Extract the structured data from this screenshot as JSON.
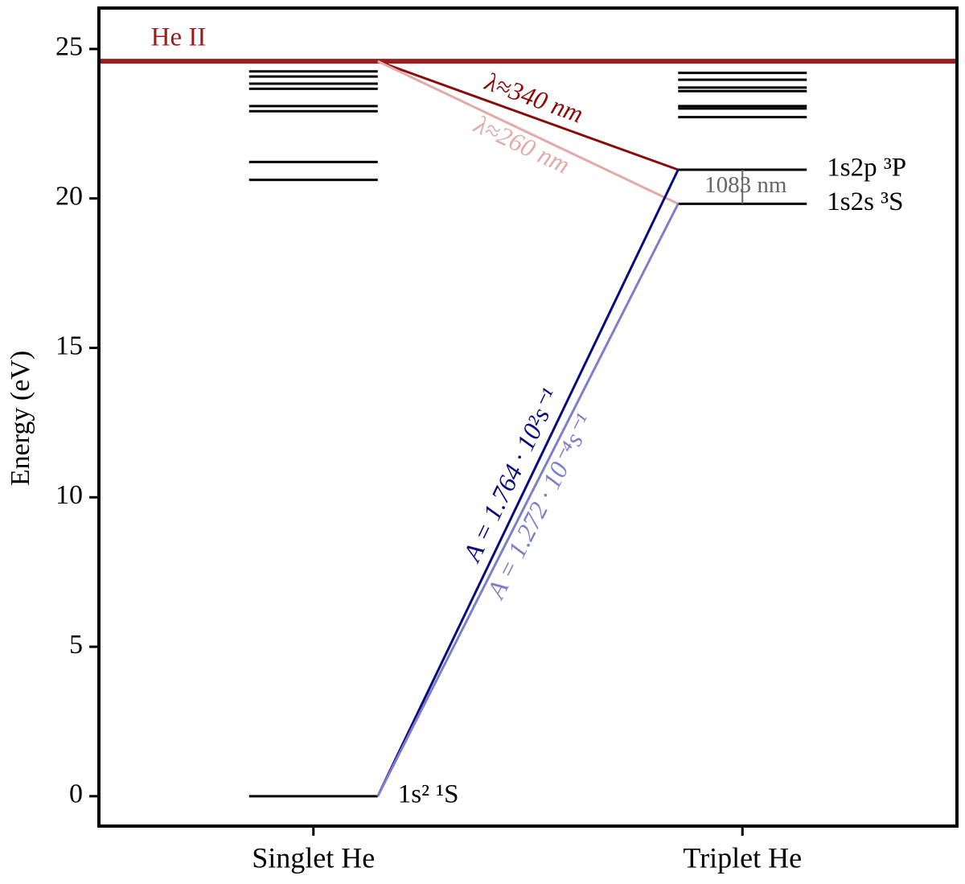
{
  "chart_data": {
    "type": "energy-levels",
    "ylabel": "Energy  (eV)",
    "ylim": [
      -1,
      26.37
    ],
    "yticks": [
      0,
      5,
      10,
      15,
      20,
      25
    ],
    "categories": [
      "Singlet He",
      "Triplet He"
    ],
    "level_color": "#000000",
    "columns": [
      {
        "values": [
          0,
          20.62,
          21.22,
          22.92,
          23.09,
          23.67,
          23.84,
          24.08,
          24.25
        ],
        "labels": [
          "1s² ¹S",
          null,
          null,
          null,
          null,
          null,
          null,
          null,
          null
        ]
      },
      {
        "values": [
          19.82,
          20.96,
          22.72,
          23.01,
          23.09,
          23.59,
          23.71,
          23.97,
          24.2
        ],
        "labels": [
          "1s2s ³S",
          "1s2p ³P",
          null,
          null,
          null,
          null,
          null,
          null,
          null
        ]
      }
    ],
    "ionization": {
      "label": "He II",
      "value": 24.59,
      "color": "#9b1c1c"
    },
    "transitions": [
      {
        "label": "λ≈340 nm",
        "from": 24.59,
        "to": 20.96,
        "color": "#8b0a0a"
      },
      {
        "label": "λ≈260 nm",
        "from": 24.59,
        "to": 19.82,
        "color": "#e3aaaa"
      },
      {
        "label": "A = 1.764 · 10²s⁻¹",
        "from": 0,
        "to": 20.96,
        "color": "#0a0a80"
      },
      {
        "label": "A = 1.272 · 10⁻⁴s⁻¹",
        "from": 0,
        "to": 19.82,
        "color": "#7f7fc9"
      }
    ],
    "annotation": {
      "text": "1083 nm",
      "from": 20.96,
      "to": 19.82,
      "color": "#666666"
    }
  }
}
